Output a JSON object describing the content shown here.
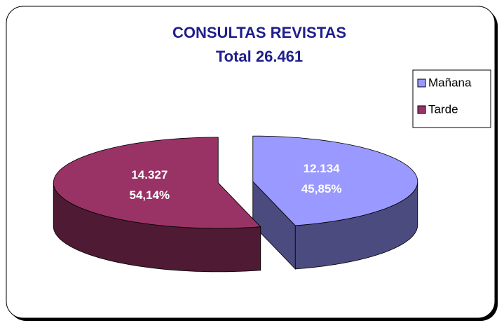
{
  "chart_data": {
    "type": "pie3d",
    "title": "CONSULTAS REVISTAS",
    "subtitle": "Total 26.461",
    "categories": [
      "Mañana",
      "Tarde"
    ],
    "values": [
      12134,
      14327
    ],
    "value_labels": [
      "12.134",
      "14.327"
    ],
    "percents": [
      45.85,
      54.14
    ],
    "percent_labels": [
      "45,85%",
      "54,14%"
    ],
    "colors": [
      "#9999ff",
      "#993366"
    ],
    "side_colors": [
      "#4b4b80",
      "#4f1a33"
    ],
    "legend": "right"
  }
}
